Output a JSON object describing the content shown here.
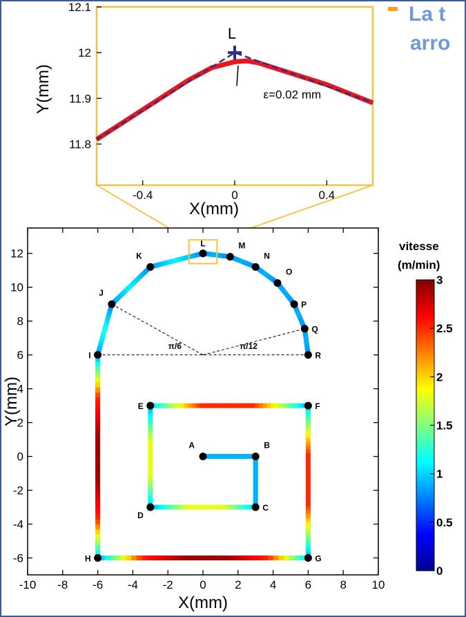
{
  "slide": {
    "bullet_color": "#f4a020",
    "title_fragment_1": "La t",
    "title_fragment_2": "arro",
    "frame_color": "#3b5c8f"
  },
  "chart_data": [
    {
      "type": "line",
      "role": "inset-zoom",
      "xlabel": "X(mm)",
      "ylabel": "Y(mm)",
      "xlim": [
        -0.6,
        0.6
      ],
      "ylim": [
        11.71,
        12.1
      ],
      "xticks": [
        -0.4,
        0,
        0.4
      ],
      "yticks": [
        11.8,
        11.9,
        12,
        12.1
      ],
      "xtick_labels": [
        "-0.4",
        "0",
        "0.4"
      ],
      "ytick_labels": [
        "11.8",
        "11.9",
        "12",
        "12.1"
      ],
      "frame_color": "#f5c242",
      "series": [
        {
          "role": "programmed-path",
          "color": "#2b2f8a",
          "style": "dashed",
          "x": [
            -0.6,
            0.0,
            0.6
          ],
          "y": [
            11.81,
            12.0,
            11.89
          ]
        },
        {
          "role": "smoothed-path",
          "color": "#e8181c",
          "style": "solid",
          "x": [
            -0.6,
            -0.4,
            -0.2,
            -0.1,
            0.0,
            0.05,
            0.1,
            0.2,
            0.4,
            0.6
          ],
          "y": [
            11.81,
            11.875,
            11.94,
            11.967,
            11.98,
            11.982,
            11.978,
            11.962,
            11.93,
            11.89
          ]
        }
      ],
      "annotations": {
        "point_label": "L",
        "point": {
          "x": 0,
          "y": 12
        },
        "tolerance_text": "ε=0.02 mm",
        "tolerance_anchor": {
          "x": 0.015,
          "y": 11.978
        },
        "tolerance_text_pos": {
          "x": 0.25,
          "y": 11.9
        }
      }
    },
    {
      "type": "line",
      "role": "toolpath-speed",
      "xlabel": "X(mm)",
      "ylabel": "Y(mm)",
      "xlim": [
        -10,
        10
      ],
      "ylim": [
        -7,
        13.5
      ],
      "xticks": [
        -10,
        -8,
        -6,
        -4,
        -2,
        0,
        2,
        4,
        6,
        8,
        10
      ],
      "yticks": [
        -6,
        -4,
        -2,
        0,
        2,
        4,
        6,
        8,
        10,
        12
      ],
      "xtick_labels": [
        "-10",
        "-8",
        "-6",
        "-4",
        "-2",
        "0",
        "2",
        "4",
        "6",
        "8",
        "10"
      ],
      "ytick_labels": [
        "-6",
        "-4",
        "-2",
        "0",
        "2",
        "4",
        "6",
        "8",
        "10",
        "12"
      ],
      "points": [
        {
          "label": "A",
          "x": 0,
          "y": 0,
          "label_pos": "above-left"
        },
        {
          "label": "B",
          "x": 3,
          "y": 0,
          "label_pos": "above-right"
        },
        {
          "label": "C",
          "x": 3,
          "y": -3,
          "label_pos": "right"
        },
        {
          "label": "D",
          "x": -3,
          "y": -3,
          "label_pos": "below-left"
        },
        {
          "label": "E",
          "x": -3,
          "y": 3,
          "label_pos": "left"
        },
        {
          "label": "F",
          "x": 6,
          "y": 3,
          "label_pos": "right"
        },
        {
          "label": "G",
          "x": 6,
          "y": -6,
          "label_pos": "right"
        },
        {
          "label": "H",
          "x": -6,
          "y": -6,
          "label_pos": "left"
        },
        {
          "label": "I",
          "x": -6,
          "y": 6,
          "label_pos": "left"
        },
        {
          "label": "J",
          "x": -5.2,
          "y": 9,
          "label_pos": "above-left"
        },
        {
          "label": "K",
          "x": -3,
          "y": 11.2,
          "label_pos": "above-left"
        },
        {
          "label": "L",
          "x": 0,
          "y": 12,
          "label_pos": "above"
        },
        {
          "label": "M",
          "x": 1.55,
          "y": 11.8,
          "label_pos": "above-right"
        },
        {
          "label": "N",
          "x": 3,
          "y": 11.2,
          "label_pos": "above-right"
        },
        {
          "label": "O",
          "x": 4.25,
          "y": 10.25,
          "label_pos": "above-right"
        },
        {
          "label": "P",
          "x": 5.2,
          "y": 9,
          "label_pos": "right"
        },
        {
          "label": "Q",
          "x": 5.8,
          "y": 7.55,
          "label_pos": "right"
        },
        {
          "label": "R",
          "x": 6,
          "y": 6,
          "label_pos": "right"
        }
      ],
      "segments": [
        {
          "from": "A",
          "to": "B",
          "speed": [
            0.9,
            0.9
          ]
        },
        {
          "from": "B",
          "to": "C",
          "speed": [
            0.9,
            0.9
          ]
        },
        {
          "from": "C",
          "to": "D",
          "speed": [
            0.9,
            1.8,
            1.8,
            0.9
          ]
        },
        {
          "from": "D",
          "to": "E",
          "speed": [
            0.9,
            1.8,
            1.8,
            0.9
          ]
        },
        {
          "from": "E",
          "to": "F",
          "speed": [
            0.9,
            2.5,
            2.5,
            0.9
          ]
        },
        {
          "from": "F",
          "to": "G",
          "speed": [
            0.9,
            2.5,
            2.5,
            0.9
          ]
        },
        {
          "from": "G",
          "to": "H",
          "speed": [
            0.9,
            2.5,
            2.9,
            2.9,
            2.5,
            0.9
          ]
        },
        {
          "from": "H",
          "to": "I",
          "speed": [
            0.9,
            2.5,
            2.9,
            2.9,
            2.5,
            0.9
          ]
        },
        {
          "from": "I",
          "to": "J",
          "speed": [
            0.8,
            1.2,
            0.8
          ]
        },
        {
          "from": "J",
          "to": "K",
          "speed": [
            0.8,
            1.1,
            0.8
          ]
        },
        {
          "from": "K",
          "to": "L",
          "speed": [
            0.8,
            1.1,
            0.8
          ]
        },
        {
          "from": "L",
          "to": "M",
          "speed": [
            0.8,
            0.9,
            0.8
          ]
        },
        {
          "from": "M",
          "to": "N",
          "speed": [
            0.8,
            0.9,
            0.8
          ]
        },
        {
          "from": "N",
          "to": "O",
          "speed": [
            0.8,
            0.9,
            0.8
          ]
        },
        {
          "from": "O",
          "to": "P",
          "speed": [
            0.8,
            0.9,
            0.8
          ]
        },
        {
          "from": "P",
          "to": "Q",
          "speed": [
            0.8,
            0.9,
            0.8
          ]
        },
        {
          "from": "Q",
          "to": "R",
          "speed": [
            0.8,
            0.9,
            0.8
          ]
        }
      ],
      "construction_lines": [
        {
          "from": {
            "x": -6,
            "y": 6
          },
          "to": {
            "x": 6,
            "y": 6
          }
        },
        {
          "from": {
            "x": 0,
            "y": 6
          },
          "to": {
            "x": -5.2,
            "y": 9
          }
        },
        {
          "from": {
            "x": 0,
            "y": 6
          },
          "to": {
            "x": 5.8,
            "y": 7.55
          }
        }
      ],
      "angle_labels": [
        {
          "text": "π/6",
          "x": -1.6,
          "y": 6.35
        },
        {
          "text": "π/12",
          "x": 2.6,
          "y": 6.35
        }
      ],
      "zoom_box": {
        "x": [
          -0.8,
          0.8
        ],
        "y": [
          11.4,
          12.8
        ]
      },
      "colorbar": {
        "title_line1": "vitesse",
        "title_line2": "(m/min)",
        "range": [
          0,
          3
        ],
        "ticks": [
          0,
          0.5,
          1,
          1.5,
          2,
          2.5,
          3
        ],
        "tick_labels": [
          "0",
          "0.5",
          "1",
          "1.5",
          "2",
          "2.5",
          "3"
        ],
        "colormap": [
          "#00008f",
          "#0000ff",
          "#0080ff",
          "#00ffff",
          "#80ff80",
          "#ffff00",
          "#ff8000",
          "#ff0000",
          "#800000"
        ]
      }
    }
  ]
}
